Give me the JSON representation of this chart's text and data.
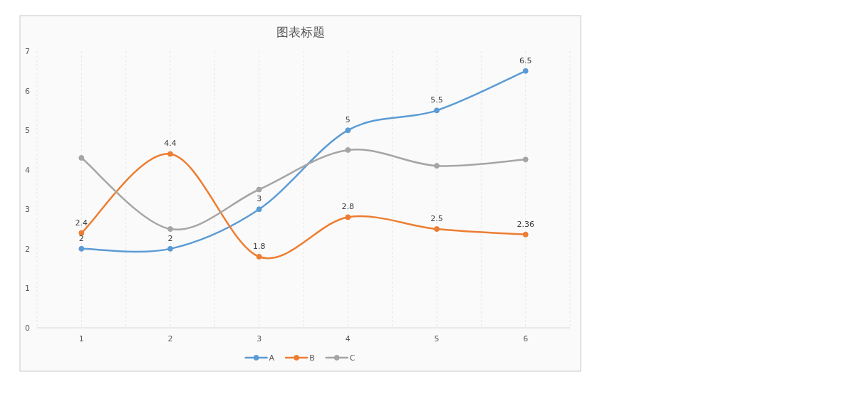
{
  "chart_data": {
    "type": "line",
    "title": "图表标题",
    "categories": [
      "1",
      "2",
      "3",
      "4",
      "5",
      "6"
    ],
    "series": [
      {
        "name": "A",
        "color": "#5b9bd5",
        "values": [
          2,
          2,
          3,
          5,
          5.5,
          6.5
        ],
        "value_labels": [
          "2",
          "2",
          "3",
          "5",
          "5.5",
          "6.5"
        ]
      },
      {
        "name": "B",
        "color": "#ed7d31",
        "values": [
          2.4,
          4.4,
          1.8,
          2.8,
          2.5,
          2.36
        ],
        "value_labels": [
          "2.4",
          "4.4",
          "1.8",
          "2.8",
          "2.5",
          "2.36"
        ]
      },
      {
        "name": "C",
        "color": "#a5a5a5",
        "values": [
          4.3,
          2.5,
          3.5,
          4.5,
          4.1,
          4.26
        ]
      }
    ],
    "ylim": [
      0,
      7
    ],
    "yticks": [
      0,
      1,
      2,
      3,
      4,
      5,
      6,
      7
    ],
    "grid": "x",
    "legend": "bottom",
    "marker": "circle",
    "line_style": "solid"
  }
}
